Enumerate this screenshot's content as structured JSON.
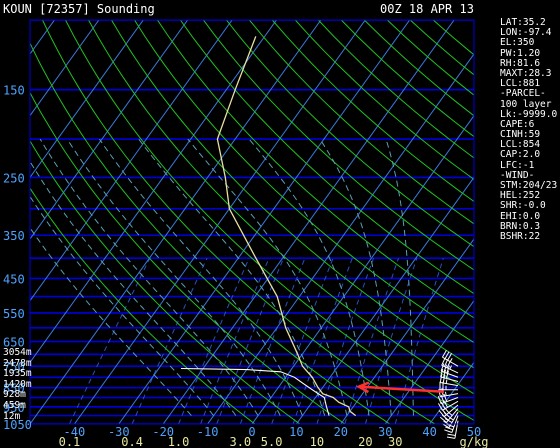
{
  "header": {
    "station": "KOUN [72357] Sounding",
    "time": "00Z 18 APR 13"
  },
  "stats": [
    "LAT:35.2",
    "LON:-97.4",
    "EL:350",
    "PW:1.20",
    "RH:81.6",
    "MAXT:28.3",
    "LCL:881",
    "-PARCEL-",
    "100 layer",
    "Lk:-9999.0",
    "CAPE:6",
    "CINH:59",
    "LCL:854",
    "CAP:2.0",
    "LFC:-1",
    "-WIND-",
    "STM:204/23",
    "HEL:252",
    "SHR:-0.0",
    "EHI:0.0",
    "BRN:0.3",
    "BSHR:22"
  ],
  "heights": [
    "3054m",
    "2478m",
    "1935m",
    "1420m",
    "928m",
    "459m",
    "12m"
  ],
  "colors": {
    "background": "#000000",
    "isobar": "#0000dd",
    "isotherm": "#3a7ad8",
    "dry_adiabat": "#22c022",
    "moist_adiabat": "#5aa0b0",
    "mixing_ratio": "#2a50c0",
    "temperature": "#e8e0a0",
    "dewpoint": "#ffffff",
    "arrow": "#ff3030",
    "pressure_label": "#4fa3ff"
  },
  "chart_data": {
    "type": "line",
    "title": "KOUN [72357] Sounding",
    "subtitle": "00Z 18 APR 13",
    "y_scale": "log-pressure",
    "ylim_hpa": [
      100,
      1050
    ],
    "xlim_c": [
      -50,
      50
    ],
    "pressure_ticks": [
      "150",
      "250",
      "350",
      "450",
      "550",
      "650",
      "750",
      "850",
      "950",
      "1050"
    ],
    "pressure_levels_hpa": [
      150,
      250,
      350,
      450,
      550,
      650,
      750,
      850,
      950,
      1050
    ],
    "pressure_gridlines_hpa": [
      100,
      150,
      200,
      250,
      300,
      350,
      400,
      450,
      500,
      550,
      600,
      650,
      700,
      750,
      800,
      850,
      900,
      950,
      1000,
      1050
    ],
    "temp_ticks": [
      "-40",
      "-30",
      "-20",
      "-10",
      "0",
      "10",
      "20",
      "30",
      "40",
      "50"
    ],
    "temp_tick_values_c": [
      -40,
      -30,
      -20,
      -10,
      0,
      10,
      20,
      30,
      40,
      50
    ],
    "mixing_ratio_ticks": [
      "0.1",
      "0.4",
      "1.0",
      "3.0",
      "5.0",
      "10",
      "20",
      "30",
      "g/kg"
    ],
    "mixing_ratio_values_gkg": [
      0.1,
      0.4,
      1.0,
      3.0,
      5.0,
      10,
      20,
      30
    ],
    "dry_adiabats_k": [
      270,
      280,
      290,
      300,
      310,
      320,
      330,
      340,
      350,
      360,
      370,
      380,
      390,
      400,
      410,
      420,
      430,
      440,
      450,
      460,
      470,
      480
    ],
    "moist_adiabats_c": [
      -15,
      -10,
      -5,
      0,
      5,
      10,
      15,
      20,
      25,
      30,
      35
    ],
    "skew": 0.72,
    "series": [
      {
        "kind": "temperature",
        "points": [
          [
            110,
            -62
          ],
          [
            150,
            -58
          ],
          [
            200,
            -54
          ],
          [
            250,
            -46
          ],
          [
            300,
            -40
          ],
          [
            400,
            -26
          ],
          [
            500,
            -15
          ],
          [
            600,
            -8
          ],
          [
            700,
            -1
          ],
          [
            750,
            2
          ],
          [
            800,
            6
          ],
          [
            850,
            9
          ],
          [
            880,
            11
          ],
          [
            900,
            14
          ],
          [
            925,
            16
          ],
          [
            950,
            19
          ],
          [
            975,
            20
          ],
          [
            1000,
            22
          ]
        ]
      },
      {
        "kind": "dewpoint",
        "points": [
          [
            760,
            -25
          ],
          [
            765,
            -10
          ],
          [
            775,
            -2
          ],
          [
            800,
            2
          ],
          [
            830,
            5
          ],
          [
            860,
            8
          ],
          [
            880,
            10
          ],
          [
            900,
            12
          ],
          [
            925,
            13
          ],
          [
            950,
            14
          ],
          [
            975,
            15
          ],
          [
            1000,
            16
          ]
        ]
      }
    ],
    "wind_barbs": {
      "pressures_hpa": [
        750,
        780,
        800,
        820,
        840,
        860,
        880,
        900,
        920,
        940,
        960,
        980,
        1000,
        1030
      ],
      "direction_deg": [
        300,
        295,
        290,
        285,
        280,
        270,
        260,
        250,
        240,
        230,
        220,
        210,
        200,
        190
      ],
      "speed_kt": [
        35,
        35,
        30,
        30,
        25,
        25,
        25,
        30,
        30,
        30,
        35,
        35,
        30,
        20
      ]
    },
    "annotation": {
      "type": "arrow",
      "from": [
        870,
        38
      ],
      "to": [
        845,
        18
      ]
    }
  }
}
